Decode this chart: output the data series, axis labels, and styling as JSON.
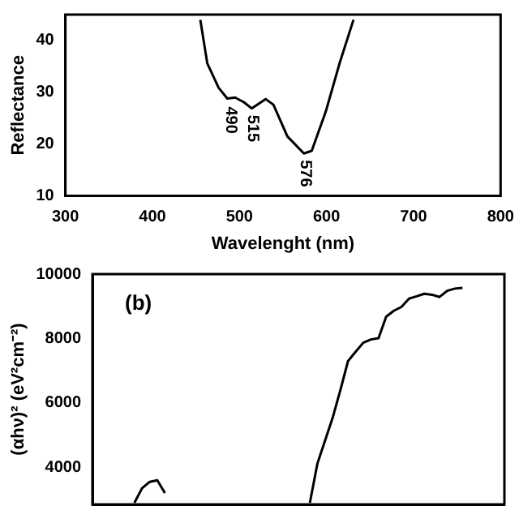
{
  "chart_data": [
    {
      "type": "line",
      "xlabel": "Wavelenght (nm)",
      "ylabel": "Reflectance",
      "x": [
        455,
        463,
        476,
        486,
        495,
        505,
        514,
        530,
        539,
        555,
        574,
        583,
        599,
        615,
        631
      ],
      "series": [
        {
          "color": "#000000",
          "values": [
            44,
            35.6,
            30.9,
            28.8,
            29.0,
            28.1,
            26.9,
            28.7,
            27.6,
            21.5,
            18.2,
            18.7,
            26.2,
            35.6,
            44
          ]
        }
      ],
      "xlim": [
        300,
        800
      ],
      "xticks": [
        300,
        400,
        500,
        600,
        700,
        800
      ],
      "ylim": [
        10,
        45
      ],
      "yticks": [
        10,
        20,
        30,
        40
      ],
      "annotations": [
        {
          "text": "490",
          "x": 490,
          "y": 28.5
        },
        {
          "text": "515",
          "x": 515,
          "y": 26.9
        },
        {
          "text": "576",
          "x": 576,
          "y": 18.2
        }
      ]
    },
    {
      "type": "line",
      "ylabel": "(αhν)² (eV²cm⁻²)",
      "categories": [
        null,
        null,
        null,
        null,
        null,
        null,
        null,
        null,
        null,
        null,
        null,
        null,
        null,
        null,
        null,
        null,
        null,
        null,
        null,
        null,
        null,
        null,
        null,
        null,
        null,
        null,
        null,
        null,
        null,
        null,
        null,
        null,
        null,
        null,
        null,
        null,
        null,
        null,
        null,
        null,
        null,
        null,
        null,
        null,
        null,
        null,
        null,
        null,
        null,
        null,
        null,
        null,
        null,
        null
      ],
      "series": [
        {
          "color": "#000000",
          "values": [
            null,
            null,
            null,
            null,
            null,
            2900,
            3350,
            3550,
            3600,
            3200,
            null,
            null,
            null,
            null,
            null,
            null,
            null,
            null,
            null,
            null,
            null,
            null,
            null,
            null,
            null,
            null,
            null,
            null,
            2900,
            4130,
            4840,
            5550,
            6400,
            7300,
            7590,
            7870,
            7970,
            8010,
            8680,
            8860,
            8980,
            9240,
            9310,
            9390,
            9360,
            9290,
            9480,
            9550,
            9570,
            null,
            null,
            null,
            null,
            null
          ]
        }
      ],
      "ylim": [
        2850,
        10000
      ],
      "yticks": [
        4000,
        6000,
        8000,
        10000
      ],
      "tick_labels": "y",
      "annotations": [
        "(b)"
      ]
    }
  ]
}
